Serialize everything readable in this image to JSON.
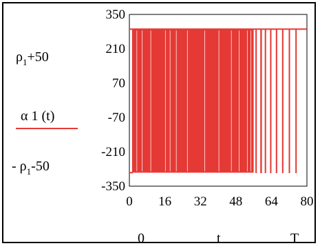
{
  "chart_data": {
    "type": "line",
    "y_expr_top": {
      "rho": "ρ",
      "sub": "1",
      "rest": "+50"
    },
    "series_label": "α 1 (t)",
    "y_expr_bottom": {
      "prefix": "- ",
      "rho": "ρ",
      "sub": "1",
      "rest": "-50"
    },
    "x_bottom_labels": {
      "left": "0",
      "mid": "t",
      "right": "T"
    },
    "y_ticks": [
      "350",
      "210",
      "70",
      "-70",
      "-210",
      "-350"
    ],
    "x_ticks": [
      "0",
      "16",
      "32",
      "48",
      "64",
      "80"
    ],
    "xlim": [
      0,
      80
    ],
    "ylim": [
      -350,
      350
    ],
    "high_value": 290,
    "low_value": -295,
    "line_color": "#e53935",
    "note": "",
    "low_intervals": [
      [
        0,
        1.6
      ],
      [
        4.4,
        4.9
      ],
      [
        7.8,
        8.3
      ],
      [
        11.2,
        11.6
      ],
      [
        14.6,
        15.0
      ],
      [
        17.2,
        17.6
      ],
      [
        19.4,
        19.8
      ],
      [
        22.0,
        22.3
      ],
      [
        24.3,
        24.6
      ],
      [
        26.6,
        26.9
      ],
      [
        28.8,
        29.1
      ],
      [
        31.0,
        31.3
      ],
      [
        33.2,
        33.5
      ],
      [
        35.3,
        35.6
      ],
      [
        37.3,
        37.6
      ],
      [
        39.2,
        39.5
      ],
      [
        41.1,
        41.4
      ],
      [
        43.0,
        43.3
      ],
      [
        44.9,
        45.2
      ],
      [
        46.7,
        47.0
      ],
      [
        48.4,
        48.7
      ],
      [
        50.1,
        50.4
      ],
      [
        51.8,
        52.1
      ],
      [
        53.5,
        53.8
      ],
      [
        55.2,
        55.5
      ],
      [
        57.0,
        57.2
      ],
      [
        59.2,
        59.5
      ],
      [
        61.2,
        61.4
      ],
      [
        63.6,
        63.8
      ],
      [
        66.2,
        66.4
      ],
      [
        69.0,
        69.2
      ],
      [
        72.0,
        72.2
      ],
      [
        75.0,
        75.2
      ]
    ]
  }
}
